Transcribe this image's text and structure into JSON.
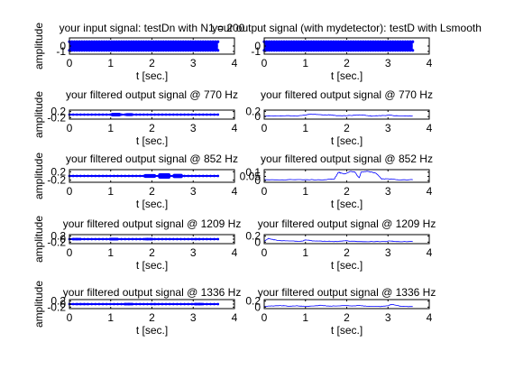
{
  "chart_data": [
    {
      "type": "line",
      "title": "your input signal: testDn with N1 = 200",
      "xlabel": "t [sec.]",
      "ylabel": "amplitude",
      "xlim": [
        0,
        4
      ],
      "ylim": [
        -1.5,
        1.5
      ],
      "yticks": [
        "0",
        "-1"
      ],
      "xticks": [
        "0",
        "1",
        "2",
        "3",
        "4"
      ],
      "color": "#0000ff",
      "style": "dense-dots",
      "duration": 3.6,
      "series": [
        {
          "x": [
            0,
            3.6
          ],
          "values": [
            -1,
            1
          ]
        }
      ]
    },
    {
      "type": "line",
      "title": "your output signal (with mydetector): testD with Lsmooth",
      "xlabel": "t [sec.]",
      "ylabel": "",
      "xlim": [
        0,
        4
      ],
      "ylim": [
        -1.5,
        1.5
      ],
      "yticks": [
        "0",
        "-1"
      ],
      "xticks": [
        "0",
        "1",
        "2",
        "3",
        "4"
      ],
      "color": "#0000ff",
      "style": "dense-dots",
      "duration": 3.6,
      "series": [
        {
          "x": [
            0,
            3.6
          ],
          "values": [
            -1,
            1
          ]
        }
      ]
    },
    {
      "type": "line",
      "title": "your filtered output signal @ 770 Hz",
      "xlabel": "t [sec.]",
      "ylabel": "amplitude",
      "xlim": [
        0,
        4
      ],
      "ylim": [
        -0.3,
        0.3
      ],
      "yticks": [
        "0.2",
        "-0.2"
      ],
      "xticks": [
        "0",
        "1",
        "2",
        "3",
        "4"
      ],
      "color": "#0000ff",
      "style": "band",
      "duration": 3.6,
      "bursts": [
        [
          0.05,
          0.55,
          0.04
        ],
        [
          1.0,
          1.25,
          0.12
        ],
        [
          1.35,
          1.55,
          0.1
        ],
        [
          1.65,
          1.75,
          0.06
        ],
        [
          2.2,
          2.35,
          0.05
        ],
        [
          2.95,
          3.1,
          0.04
        ]
      ]
    },
    {
      "type": "line",
      "title": "your filtered output signal @ 770 Hz",
      "xlabel": "t [sec.]",
      "ylabel": "",
      "xlim": [
        0,
        4
      ],
      "ylim": [
        -0.1,
        0.25
      ],
      "yticks": [
        "0.2",
        "0"
      ],
      "xticks": [
        "0",
        "1",
        "2",
        "3",
        "4"
      ],
      "color": "#0000ff",
      "style": "envelope",
      "duration": 3.6,
      "x": [
        0,
        0.3,
        0.5,
        0.8,
        1.0,
        1.1,
        1.3,
        1.45,
        1.6,
        1.7,
        1.9,
        2.2,
        2.35,
        2.6,
        2.9,
        3.05,
        3.3,
        3.6
      ],
      "values": [
        0.02,
        0.02,
        0.03,
        0.02,
        0.06,
        0.09,
        0.08,
        0.06,
        0.07,
        0.04,
        0.03,
        0.05,
        0.06,
        0.02,
        0.04,
        0.05,
        0.02,
        0.02
      ]
    },
    {
      "type": "line",
      "title": "your filtered output signal @ 852 Hz",
      "xlabel": "t [sec.]",
      "ylabel": "amplitude",
      "xlim": [
        0,
        4
      ],
      "ylim": [
        -0.3,
        0.3
      ],
      "yticks": [
        "0.2",
        "-0.2"
      ],
      "xticks": [
        "0",
        "1",
        "2",
        "3",
        "4"
      ],
      "color": "#0000ff",
      "style": "band",
      "duration": 3.6,
      "bursts": [
        [
          0.05,
          1.75,
          0.02
        ],
        [
          1.8,
          2.1,
          0.09
        ],
        [
          2.15,
          2.45,
          0.13
        ],
        [
          2.5,
          2.75,
          0.1
        ],
        [
          2.8,
          3.6,
          0.03
        ]
      ]
    },
    {
      "type": "line",
      "title": "your filtered output signal @ 852 Hz",
      "xlabel": "t [sec.]",
      "ylabel": "",
      "xlim": [
        0,
        4
      ],
      "ylim": [
        -0.02,
        0.13
      ],
      "yticks": [
        "0.1",
        "0.05",
        "0"
      ],
      "xticks": [
        "0",
        "1",
        "2",
        "3",
        "4"
      ],
      "color": "#0000ff",
      "style": "envelope",
      "duration": 3.6,
      "x": [
        0,
        0.5,
        1.0,
        1.4,
        1.7,
        1.8,
        1.85,
        1.95,
        2.1,
        2.2,
        2.3,
        2.35,
        2.5,
        2.7,
        2.85,
        3.0,
        3.3,
        3.6
      ],
      "values": [
        0.01,
        0.01,
        0.01,
        0.01,
        0.02,
        0.1,
        0.09,
        0.08,
        0.11,
        0.1,
        0.03,
        0.1,
        0.11,
        0.09,
        0.02,
        0.02,
        0.01,
        0.01
      ]
    },
    {
      "type": "line",
      "title": "your filtered output signal @ 1209 Hz",
      "xlabel": "t [sec.]",
      "ylabel": "amplitude",
      "xlim": [
        0,
        4
      ],
      "ylim": [
        -0.3,
        0.3
      ],
      "yticks": [
        "0.2",
        "0",
        "-0.2"
      ],
      "xticks": [
        "0",
        "1",
        "2",
        "3",
        "4"
      ],
      "color": "#0000ff",
      "style": "band",
      "duration": 3.6,
      "bursts": [
        [
          0.05,
          0.3,
          0.08
        ],
        [
          0.3,
          0.95,
          0.04
        ],
        [
          0.95,
          1.2,
          0.09
        ],
        [
          1.8,
          2.05,
          0.08
        ],
        [
          2.95,
          3.2,
          0.07
        ],
        [
          1.2,
          1.8,
          0.04
        ]
      ]
    },
    {
      "type": "line",
      "title": "your filtered output signal @ 1209 Hz",
      "xlabel": "t [sec.]",
      "ylabel": "",
      "xlim": [
        0,
        4
      ],
      "ylim": [
        -0.05,
        0.25
      ],
      "yticks": [
        "0.2",
        "0"
      ],
      "xticks": [
        "0",
        "1",
        "2",
        "3",
        "4"
      ],
      "color": "#0000ff",
      "style": "envelope",
      "duration": 3.6,
      "x": [
        0,
        0.1,
        0.2,
        0.35,
        0.6,
        0.9,
        1.0,
        1.2,
        1.5,
        1.8,
        1.95,
        2.1,
        2.5,
        2.9,
        3.05,
        3.2,
        3.6
      ],
      "values": [
        0.03,
        0.12,
        0.09,
        0.05,
        0.04,
        0.03,
        0.07,
        0.04,
        0.03,
        0.02,
        0.05,
        0.03,
        0.02,
        0.02,
        0.04,
        0.02,
        0.02
      ]
    },
    {
      "type": "line",
      "title": "your filtered output signal @ 1336 Hz",
      "xlabel": "t [sec.]",
      "ylabel": "amplitude",
      "xlim": [
        0,
        4
      ],
      "ylim": [
        -0.3,
        0.3
      ],
      "yticks": [
        "0.2",
        "0",
        "-0.2"
      ],
      "xticks": [
        "0",
        "1",
        "2",
        "3",
        "4"
      ],
      "color": "#0000ff",
      "style": "band",
      "duration": 3.6,
      "bursts": [
        [
          0.1,
          0.5,
          0.07
        ],
        [
          0.7,
          0.9,
          0.05
        ],
        [
          1.3,
          1.55,
          0.08
        ],
        [
          1.95,
          2.15,
          0.07
        ],
        [
          2.4,
          2.6,
          0.06
        ],
        [
          3.0,
          3.25,
          0.08
        ],
        [
          0.05,
          3.6,
          0.02
        ]
      ]
    },
    {
      "type": "line",
      "title": "your filtered output signal @ 1336 Hz",
      "xlabel": "t [sec.]",
      "ylabel": "",
      "xlim": [
        0,
        4
      ],
      "ylim": [
        -0.05,
        0.25
      ],
      "yticks": [
        "0.2",
        "0"
      ],
      "xticks": [
        "0",
        "1",
        "2",
        "3",
        "4"
      ],
      "color": "#0000ff",
      "style": "envelope",
      "duration": 3.6,
      "x": [
        0,
        0.2,
        0.4,
        0.6,
        0.8,
        1.0,
        1.4,
        1.6,
        1.9,
        2.1,
        2.3,
        2.5,
        2.8,
        3.0,
        3.1,
        3.3,
        3.6
      ],
      "values": [
        0.02,
        0.04,
        0.05,
        0.03,
        0.04,
        0.02,
        0.06,
        0.03,
        0.05,
        0.04,
        0.05,
        0.03,
        0.02,
        0.05,
        0.09,
        0.03,
        0.02
      ]
    }
  ]
}
